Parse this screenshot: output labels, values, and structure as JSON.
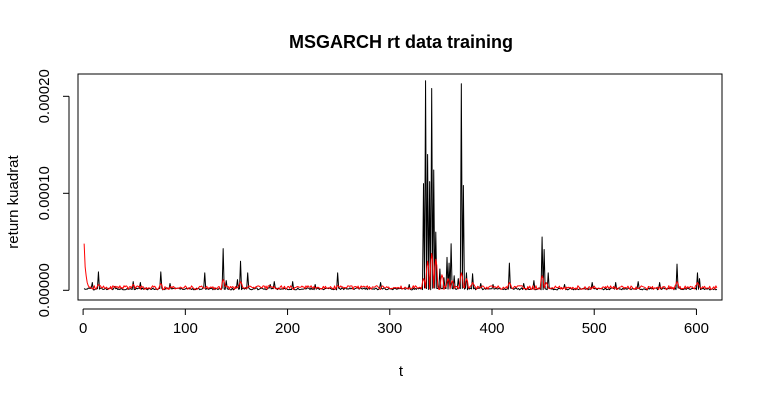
{
  "chart_data": {
    "type": "line",
    "title": "MSGARCH rt data training",
    "xlabel": "t",
    "ylabel": "return kuadrat",
    "xlim": [
      -5,
      625
    ],
    "ylim": [
      -1e-05,
      0.000223
    ],
    "x_ticks": [
      0,
      100,
      200,
      300,
      400,
      500,
      600
    ],
    "x_tick_labels": [
      "0",
      "100",
      "200",
      "300",
      "400",
      "500",
      "600"
    ],
    "y_ticks": [
      0,
      0.0001,
      0.0002
    ],
    "y_tick_labels": [
      "0.00000",
      "0.00010",
      "0.00020"
    ],
    "grid": false,
    "legend": "none",
    "n_points": 620,
    "series": [
      {
        "color": "#000000",
        "baseline": 1.5e-06,
        "peaks": [
          [
            8,
            8e-06
          ],
          [
            14,
            1.9e-05
          ],
          [
            30,
            4e-06
          ],
          [
            48,
            9e-06
          ],
          [
            55,
            8e-06
          ],
          [
            75,
            1.9e-05
          ],
          [
            84,
            7e-06
          ],
          [
            118,
            1.8e-05
          ],
          [
            136,
            4.3e-05
          ],
          [
            139,
            1e-05
          ],
          [
            150,
            1.1e-05
          ],
          [
            153,
            3e-05
          ],
          [
            160,
            1.8e-05
          ],
          [
            182,
            6e-06
          ],
          [
            186,
            9e-06
          ],
          [
            204,
            9e-06
          ],
          [
            226,
            6e-06
          ],
          [
            248,
            1.8e-05
          ],
          [
            290,
            8e-06
          ],
          [
            318,
            6e-06
          ],
          [
            332,
            0.00011
          ],
          [
            334,
            0.000216
          ],
          [
            336,
            0.00014
          ],
          [
            338,
            0.000112
          ],
          [
            340,
            0.000208
          ],
          [
            342,
            0.000124
          ],
          [
            344,
            6e-05
          ],
          [
            348,
            2.2e-05
          ],
          [
            352,
            1.3e-05
          ],
          [
            355,
            3.4e-05
          ],
          [
            357,
            2.8e-05
          ],
          [
            359,
            4.8e-05
          ],
          [
            362,
            1.5e-05
          ],
          [
            366,
            1.2e-05
          ],
          [
            369,
            0.000213
          ],
          [
            371,
            0.000108
          ],
          [
            374,
            1.8e-05
          ],
          [
            380,
            1.7e-05
          ],
          [
            388,
            7e-06
          ],
          [
            400,
            6e-06
          ],
          [
            416,
            2.8e-05
          ],
          [
            430,
            7e-06
          ],
          [
            440,
            1e-05
          ],
          [
            448,
            5.5e-05
          ],
          [
            450,
            4.2e-05
          ],
          [
            454,
            1.8e-05
          ],
          [
            470,
            6e-06
          ],
          [
            497,
            8e-06
          ],
          [
            520,
            8e-06
          ],
          [
            542,
            9e-06
          ],
          [
            563,
            8e-06
          ],
          [
            580,
            2.7e-05
          ],
          [
            600,
            1.8e-05
          ],
          [
            602,
            1.2e-05
          ]
        ]
      },
      {
        "color": "#ff0000",
        "start_value": 4.5e-05,
        "decay": 0.7,
        "baseline": 2.8e-06,
        "peaks": [
          [
            14,
            6e-06
          ],
          [
            48,
            6e-06
          ],
          [
            75,
            7e-06
          ],
          [
            136,
            1.1e-05
          ],
          [
            153,
            9e-06
          ],
          [
            248,
            5e-06
          ],
          [
            332,
            1.2e-05
          ],
          [
            336,
            3e-05
          ],
          [
            340,
            3.8e-05
          ],
          [
            344,
            3.2e-05
          ],
          [
            350,
            1.6e-05
          ],
          [
            356,
            1.2e-05
          ],
          [
            360,
            1e-05
          ],
          [
            369,
            1.8e-05
          ],
          [
            374,
            1.2e-05
          ],
          [
            380,
            8e-06
          ],
          [
            416,
            8e-06
          ],
          [
            448,
            1.5e-05
          ],
          [
            452,
            8e-06
          ],
          [
            580,
            9e-06
          ],
          [
            600,
            8e-06
          ]
        ]
      }
    ]
  }
}
